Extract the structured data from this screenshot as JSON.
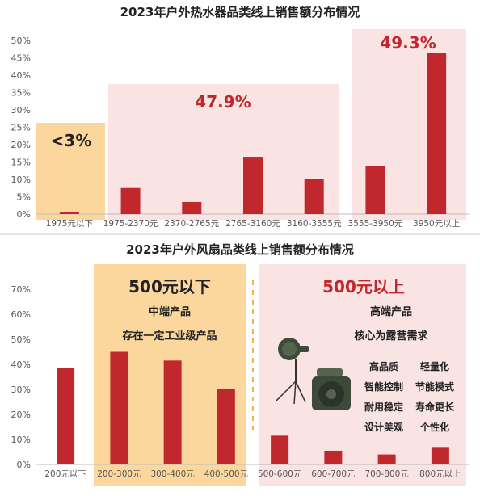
{
  "colors": {
    "bar": "#c0282d",
    "orange_panel": "#fbd79e",
    "pink_panel": "#f9e3e3",
    "accent_text": "#c0282d",
    "axis_text": "#555555",
    "title_text": "#222222"
  },
  "chart_data": [
    {
      "type": "bar",
      "title": "2023年户外热水器品类线上销售额分布情况",
      "categories": [
        "1975元以下",
        "1975-2370元",
        "2370-2765元",
        "2765-3160元",
        "3160-3555元",
        "3555-3950元",
        "3950元以上"
      ],
      "values": [
        0.5,
        7.5,
        3.5,
        16.5,
        10.2,
        13.8,
        46.5
      ],
      "unit": "%",
      "ylim": [
        0,
        50
      ],
      "yticks": [
        "0%",
        "5%",
        "10%",
        "15%",
        "20%",
        "25%",
        "30%",
        "35%",
        "40%",
        "45%",
        "50%"
      ],
      "grid": false,
      "groups": [
        {
          "label": "<3%",
          "color": "orange"
        },
        {
          "label": "47.9%",
          "color": "pink"
        },
        {
          "label": "49.3%",
          "color": "pink"
        }
      ]
    },
    {
      "type": "bar",
      "title": "2023年户外风扇品类线上销售额分布情况",
      "categories": [
        "200元以下",
        "200-300元",
        "300-400元",
        "400-500元",
        "500-600元",
        "600-700元",
        "700-800元",
        "800元以上"
      ],
      "values": [
        38.5,
        45,
        41.5,
        30,
        11.5,
        5.5,
        4,
        7
      ],
      "unit": "%",
      "ylim": [
        0,
        70
      ],
      "yticks": [
        "0%",
        "10%",
        "20%",
        "30%",
        "40%",
        "50%",
        "60%",
        "70%"
      ],
      "grid": false,
      "panels": {
        "mid": {
          "title": "500元以下",
          "subtitle": "中端产品",
          "note": "存在一定工业级产品"
        },
        "high": {
          "title": "500元以上",
          "subtitle": "高端产品",
          "note": "核心为露营需求",
          "features": [
            "高品质",
            "轻量化",
            "智能控制",
            "节能模式",
            "耐用稳定",
            "寿命更长",
            "设计美观",
            "个性化"
          ]
        }
      }
    }
  ]
}
